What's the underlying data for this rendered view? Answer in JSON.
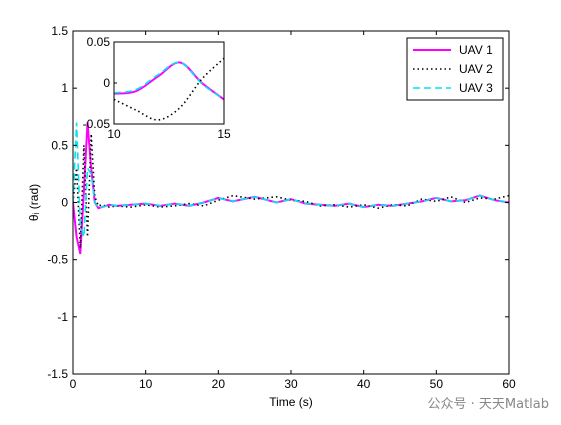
{
  "chart_data": {
    "type": "line",
    "xlabel": "Time (s)",
    "ylabel": "θᵢ (rad)",
    "xlim": [
      0,
      60
    ],
    "ylim": [
      -1.5,
      1.5
    ],
    "xticks": [
      "0",
      "10",
      "20",
      "30",
      "40",
      "50",
      "60"
    ],
    "yticks": [
      "-1.5",
      "-1",
      "-0.5",
      "0",
      "0.5",
      "1",
      "1.5"
    ],
    "grid": false,
    "legend": "top-right",
    "series": [
      {
        "name": "UAV 1",
        "color": "#ff00ff",
        "style": "solid",
        "x": [
          0,
          0.5,
          1,
          1.5,
          2,
          2.5,
          3,
          3.5,
          4,
          5,
          6,
          8,
          10,
          12,
          14,
          16,
          18,
          20,
          22,
          25,
          28,
          30,
          32,
          34,
          36,
          38,
          40,
          42,
          44,
          46,
          48,
          50,
          52,
          54,
          56,
          58,
          60
        ],
        "y": [
          0,
          -0.3,
          -0.45,
          0.1,
          0.7,
          0.3,
          0.0,
          -0.05,
          -0.04,
          -0.02,
          -0.03,
          -0.02,
          -0.01,
          -0.03,
          -0.01,
          -0.03,
          0.0,
          0.04,
          0.01,
          0.05,
          0.0,
          0.03,
          -0.01,
          -0.02,
          -0.03,
          -0.01,
          -0.04,
          -0.02,
          -0.03,
          -0.01,
          0.01,
          0.04,
          0.01,
          0.02,
          0.06,
          0.02,
          0.0
        ]
      },
      {
        "name": "UAV 2",
        "color": "#000000",
        "style": "dotted",
        "x": [
          0,
          0.5,
          1,
          1.5,
          2,
          2.5,
          3,
          3.5,
          4,
          5,
          6,
          8,
          10,
          12,
          14,
          16,
          18,
          20,
          22,
          25,
          28,
          30,
          32,
          34,
          36,
          38,
          40,
          42,
          44,
          46,
          48,
          50,
          52,
          54,
          56,
          58,
          60
        ],
        "y": [
          0,
          0.3,
          -0.4,
          0.5,
          -0.3,
          0.6,
          0.05,
          -0.03,
          -0.02,
          -0.04,
          -0.03,
          -0.04,
          -0.02,
          -0.04,
          -0.03,
          -0.01,
          -0.03,
          0.02,
          0.06,
          0.03,
          0.05,
          0.02,
          0.01,
          -0.03,
          -0.02,
          -0.04,
          -0.02,
          -0.05,
          -0.02,
          -0.03,
          0.03,
          0.01,
          0.05,
          0.0,
          0.04,
          0.03,
          0.06
        ]
      },
      {
        "name": "UAV 3",
        "color": "#00e5ee",
        "style": "dashed",
        "x": [
          0,
          0.5,
          1,
          1.5,
          2,
          2.5,
          3,
          3.5,
          4,
          5,
          6,
          8,
          10,
          12,
          14,
          16,
          18,
          20,
          22,
          25,
          28,
          30,
          32,
          34,
          36,
          38,
          40,
          42,
          44,
          46,
          48,
          50,
          52,
          54,
          56,
          58,
          60
        ],
        "y": [
          0,
          0.7,
          -0.2,
          -0.3,
          0.3,
          0.25,
          0.0,
          -0.05,
          -0.04,
          -0.02,
          -0.03,
          -0.02,
          -0.01,
          -0.03,
          -0.01,
          -0.03,
          0.0,
          0.04,
          0.01,
          0.05,
          0.0,
          0.03,
          -0.01,
          -0.02,
          -0.03,
          -0.01,
          -0.04,
          -0.02,
          -0.03,
          -0.01,
          0.01,
          0.04,
          0.01,
          0.02,
          0.06,
          0.02,
          0.0
        ]
      }
    ],
    "inset": {
      "xlim": [
        10,
        15
      ],
      "ylim": [
        -0.05,
        0.05
      ],
      "xticks": [
        "10",
        "15"
      ],
      "yticks": [
        "-0.05",
        "0",
        "0.05"
      ],
      "series": [
        {
          "name": "UAV 1",
          "x": [
            10,
            11,
            12,
            13,
            14,
            15
          ],
          "y": [
            -0.013,
            -0.01,
            0.008,
            0.025,
            0.0,
            -0.02
          ]
        },
        {
          "name": "UAV 2",
          "x": [
            10,
            11,
            12,
            13,
            14,
            15
          ],
          "y": [
            -0.02,
            -0.033,
            -0.045,
            -0.03,
            0.005,
            0.03
          ]
        },
        {
          "name": "UAV 3",
          "x": [
            10,
            11,
            12,
            13,
            14,
            15
          ],
          "y": [
            -0.012,
            -0.008,
            0.01,
            0.025,
            -0.001,
            -0.02
          ]
        }
      ]
    }
  },
  "watermark": "公众号 · 天天Matlab"
}
